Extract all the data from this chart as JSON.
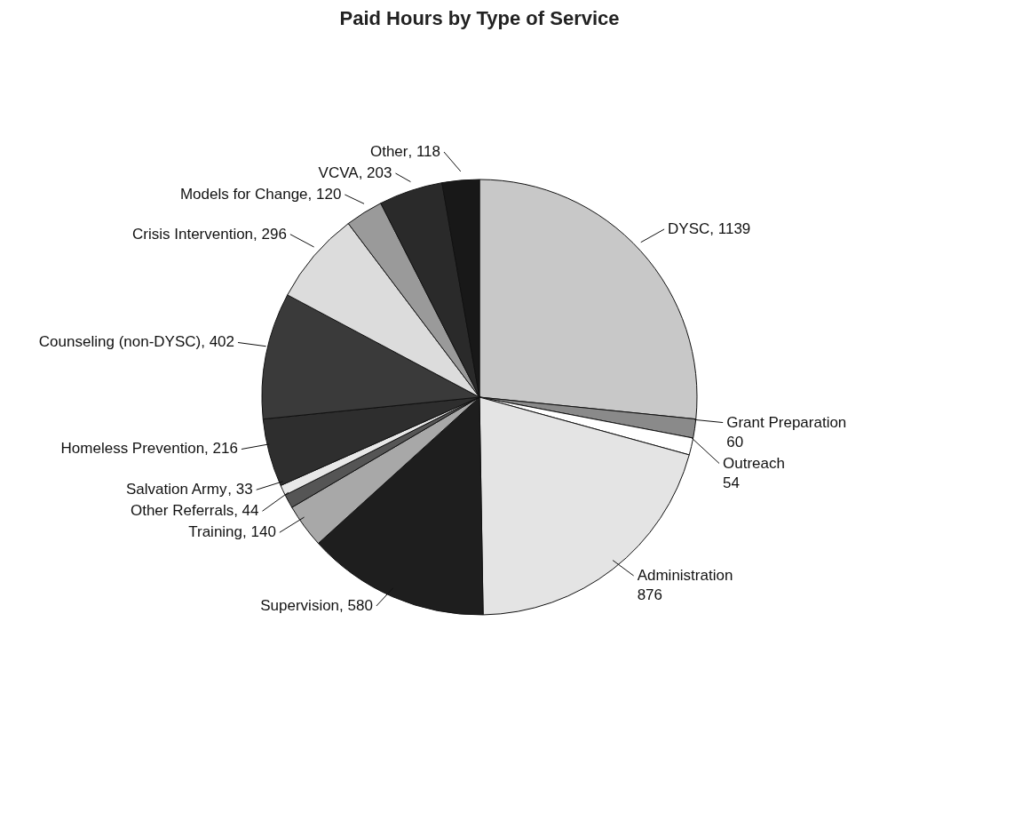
{
  "chart_data": {
    "type": "pie",
    "title": "Paid Hours by Type of Service",
    "categories": [
      "DYSC",
      "Grant Preparation",
      "Outreach",
      "Administration",
      "Supervision",
      "Training",
      "Other Referrals",
      "Salvation Army",
      "Homeless Prevention",
      "Counseling (non-DYSC)",
      "Crisis Intervention",
      "Models for Change",
      "VCVA",
      "Other"
    ],
    "values": [
      1139,
      60,
      54,
      876,
      580,
      140,
      44,
      33,
      216,
      402,
      296,
      120,
      203,
      118
    ],
    "colors": [
      "#c8c8c8",
      "#8a8a8a",
      "#ffffff",
      "#e4e4e4",
      "#1e1e1e",
      "#a8a8a8",
      "#555555",
      "#e8e8e8",
      "#2e2e2e",
      "#3a3a3a",
      "#dcdcdc",
      "#9a9a9a",
      "#2a2a2a",
      "#181818"
    ],
    "value_labels": [
      ", 1139",
      "60",
      "54",
      "876",
      ", 580",
      ", 140",
      ", 44",
      ", 33",
      ", 216",
      ", 402",
      ", 296",
      ", 120",
      ", 203",
      ", 118"
    ]
  }
}
